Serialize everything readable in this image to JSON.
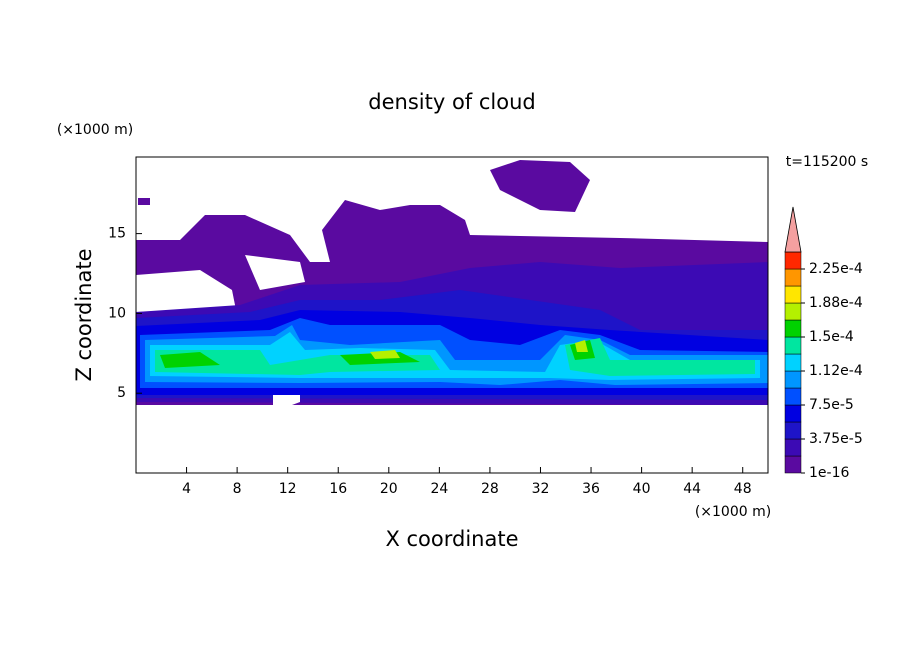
{
  "chart_data": {
    "type": "contour",
    "title": "density of cloud",
    "x_label": "X coordinate",
    "y_label": "Z coordinate",
    "x_unit": "(×1000 m)",
    "y_unit": "(×1000 m)",
    "annotation": "t=115200 s",
    "xlim": [
      0,
      50
    ],
    "xticks": [
      4,
      8,
      12,
      16,
      20,
      24,
      28,
      32,
      36,
      40,
      44,
      48
    ],
    "ylim": [
      0,
      19.8
    ],
    "yticks": [
      5,
      10,
      15
    ],
    "colorbar": {
      "clim": [
        1e-16,
        0.00024375
      ],
      "colors": [
        "#5a0aa0",
        "#3c0ab4",
        "#1e14c8",
        "#0000e1",
        "#0050ff",
        "#0096ff",
        "#00d2ff",
        "#00e6a0",
        "#00d200",
        "#b4f000",
        "#ffe600",
        "#ff9600",
        "#ff2800"
      ],
      "extend_color": "#f4a0a0",
      "ticks": [
        {
          "value": 1e-16,
          "label": "1e-16"
        },
        {
          "value": 3.75e-05,
          "label": "3.75e-5"
        },
        {
          "value": 7.5e-05,
          "label": "7.5e-5"
        },
        {
          "value": 0.0001125,
          "label": "1.12e-4"
        },
        {
          "value": 0.00015,
          "label": "1.5e-4"
        },
        {
          "value": 0.0001875,
          "label": "1.88e-4"
        },
        {
          "value": 0.000225,
          "label": "2.25e-4"
        }
      ]
    }
  }
}
